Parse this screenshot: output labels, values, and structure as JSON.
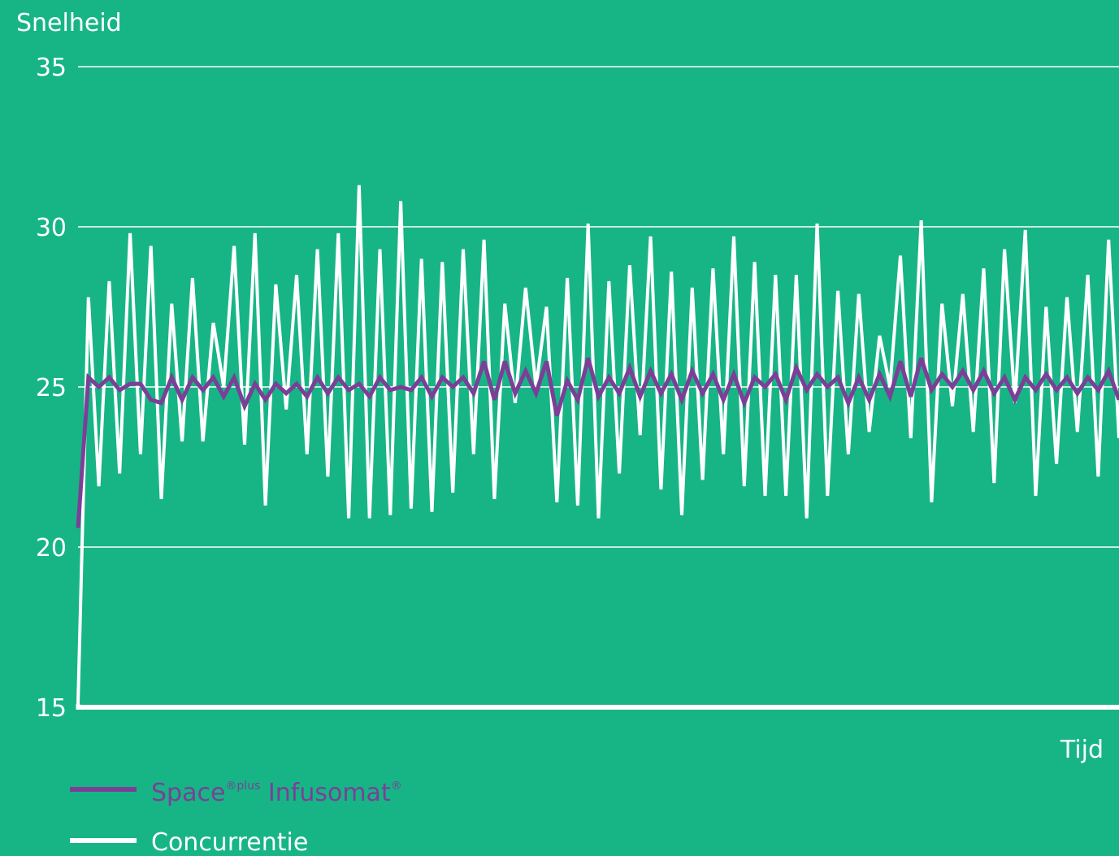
{
  "colors": {
    "background": "#17b585",
    "space": "#7b3f98",
    "concurrentie": "#ffffff"
  },
  "chart_data": {
    "type": "line",
    "title": "",
    "ylabel": "Snelheid",
    "xlabel": "Tijd",
    "ylim": [
      15,
      35
    ],
    "yticks": [
      15,
      20,
      25,
      30,
      35
    ],
    "grid": "horizontal",
    "legend_position": "bottom-left",
    "x": [
      0,
      1,
      2,
      3,
      4,
      5,
      6,
      7,
      8,
      9,
      10,
      11,
      12,
      13,
      14,
      15,
      16,
      17,
      18,
      19,
      20,
      21,
      22,
      23,
      24,
      25,
      26,
      27,
      28,
      29,
      30,
      31,
      32,
      33,
      34,
      35,
      36,
      37,
      38,
      39,
      40,
      41,
      42,
      43,
      44,
      45,
      46,
      47,
      48,
      49,
      50,
      51,
      52,
      53,
      54,
      55,
      56,
      57,
      58,
      59,
      60,
      61,
      62,
      63,
      64,
      65,
      66,
      67,
      68,
      69,
      70,
      71,
      72,
      73,
      74,
      75,
      76,
      77,
      78,
      79,
      80,
      81,
      82,
      83,
      84,
      85,
      86,
      87,
      88,
      89,
      90,
      91,
      92,
      93,
      94,
      95,
      96,
      97,
      98,
      99,
      100
    ],
    "series": [
      {
        "name": "Concurrentie",
        "name_main": "Concurrentie",
        "color": "#ffffff",
        "values": [
          15.1,
          27.8,
          21.9,
          28.3,
          22.3,
          29.8,
          22.9,
          29.4,
          21.5,
          27.6,
          23.3,
          28.4,
          23.3,
          27.0,
          25.0,
          29.4,
          23.2,
          29.8,
          21.3,
          28.2,
          24.3,
          28.5,
          22.9,
          29.3,
          22.2,
          29.8,
          20.9,
          31.3,
          20.9,
          29.3,
          21.0,
          30.8,
          21.2,
          29.0,
          21.1,
          28.9,
          21.7,
          29.3,
          22.9,
          29.6,
          21.5,
          27.6,
          24.5,
          28.1,
          25.0,
          27.5,
          21.4,
          28.4,
          21.3,
          30.1,
          20.9,
          28.3,
          22.3,
          28.8,
          23.5,
          29.7,
          21.8,
          28.6,
          21.0,
          28.1,
          22.1,
          28.7,
          22.9,
          29.7,
          21.9,
          28.9,
          21.6,
          28.5,
          21.6,
          28.5,
          20.9,
          30.1,
          21.6,
          28.0,
          22.9,
          27.9,
          23.6,
          26.6,
          25.0,
          29.1,
          23.4,
          30.2,
          21.4,
          27.6,
          24.4,
          27.9,
          23.6,
          28.7,
          22.0,
          29.3,
          24.5,
          29.9,
          21.6,
          27.5,
          22.6,
          27.8,
          23.6,
          28.5,
          22.2,
          29.6,
          23.4
        ]
      },
      {
        "name": "Space®plus Infusomat®",
        "name_main": "Space",
        "name_sup1": "®plus",
        "name_mid": " Infusomat",
        "name_sup2": "®",
        "color": "#7b3f98",
        "values": [
          20.6,
          25.3,
          25.0,
          25.3,
          24.9,
          25.1,
          25.1,
          24.6,
          24.5,
          25.3,
          24.6,
          25.3,
          24.9,
          25.3,
          24.7,
          25.3,
          24.4,
          25.1,
          24.6,
          25.1,
          24.8,
          25.1,
          24.7,
          25.3,
          24.8,
          25.3,
          24.9,
          25.1,
          24.7,
          25.3,
          24.9,
          25.0,
          24.9,
          25.3,
          24.7,
          25.3,
          25.0,
          25.3,
          24.8,
          25.8,
          24.6,
          25.8,
          24.8,
          25.5,
          24.8,
          25.8,
          24.1,
          25.2,
          24.6,
          25.9,
          24.7,
          25.3,
          24.8,
          25.6,
          24.7,
          25.5,
          24.8,
          25.4,
          24.6,
          25.5,
          24.8,
          25.4,
          24.6,
          25.4,
          24.5,
          25.3,
          25.0,
          25.4,
          24.6,
          25.6,
          24.9,
          25.4,
          25.0,
          25.3,
          24.5,
          25.3,
          24.6,
          25.4,
          24.7,
          25.8,
          24.7,
          25.9,
          24.9,
          25.4,
          25.0,
          25.5,
          24.9,
          25.5,
          24.8,
          25.3,
          24.6,
          25.3,
          24.9,
          25.4,
          24.9,
          25.3,
          24.8,
          25.3,
          24.9,
          25.5,
          24.6
        ]
      }
    ]
  }
}
